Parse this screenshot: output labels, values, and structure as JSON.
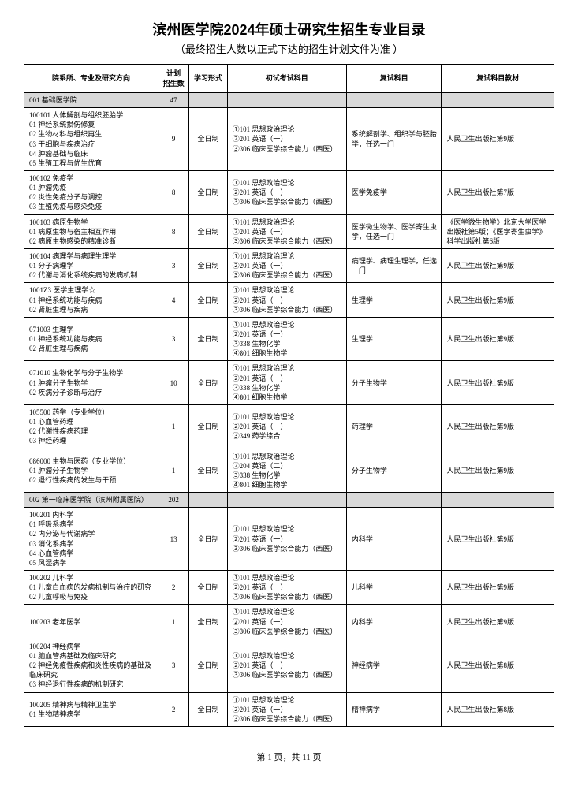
{
  "title": "滨州医学院2024年硕士研究生招生专业目录",
  "subtitle": "（最终招生人数以正式下达的招生计划文件为准 ）",
  "headers": {
    "dept": "院系所、专业及研究方向",
    "plan": "计划\n招生数",
    "mode": "学习形式",
    "exam1": "初试考试科目",
    "exam2": "复试科目",
    "material": "复试科目教材"
  },
  "footer": "第 1 页，共 11 页",
  "rows": [
    {
      "type": "section",
      "name": "001 基础医学院",
      "plan": "47"
    },
    {
      "type": "entry",
      "dir": "100101 人体解剖与组织胚胎学\n01 神经系统损伤修复\n02 生物材料与组织再生\n03 干细胞与疾病治疗\n04 肿瘤基础与临床\n05 生殖工程与优生优育",
      "plan": "9",
      "mode": "全日制",
      "exam1": "①101 思想政治理论\n②201 英语（一）\n③306 临床医学综合能力（西医）",
      "exam2": "系统解剖学、组织学与胚胎学，任选一门",
      "material": "人民卫生出版社第9版"
    },
    {
      "type": "entry",
      "dir": "100102 免疫学\n01 肿瘤免疫\n02 炎性免疫分子与调控\n03 生殖免疫与感染免疫",
      "plan": "8",
      "mode": "全日制",
      "exam1": "①101 思想政治理论\n②201 英语（一）\n③306 临床医学综合能力（西医）",
      "exam2": "医学免疫学",
      "material": "人民卫生出版社第7版"
    },
    {
      "type": "entry",
      "dir": "100103 病原生物学\n01 病原生物与宿主相互作用\n02 病原生物感染的精准诊断",
      "plan": "8",
      "mode": "全日制",
      "exam1": "①101 思想政治理论\n②201 英语（一）\n③306 临床医学综合能力（西医）",
      "exam2": "医学微生物学、医学寄生虫学，任选一门",
      "material": "《医学微生物学》北京大学医学出版社第5版；《医学寄生虫学》科学出版社第6版"
    },
    {
      "type": "entry",
      "dir": "100104 病理学与病理生理学\n01 分子病理学\n02 代谢与消化系统疾病的发病机制",
      "plan": "3",
      "mode": "全日制",
      "exam1": "①101 思想政治理论\n②201 英语（一）\n③306 临床医学综合能力（西医）",
      "exam2": "病理学、病理生理学，任选一门",
      "material": "人民卫生出版社第9版"
    },
    {
      "type": "entry",
      "dir": "1001Z3 医学生理学☆\n01 神经系统功能与疾病\n02 肾脏生理与疾病",
      "plan": "4",
      "mode": "全日制",
      "exam1": "①101 思想政治理论\n②201 英语（一）\n③306 临床医学综合能力（西医）",
      "exam2": "生理学",
      "material": "人民卫生出版社第9版"
    },
    {
      "type": "entry",
      "dir": "071003 生理学\n01 神经系统功能与疾病\n02 肾脏生理与疾病",
      "plan": "3",
      "mode": "全日制",
      "exam1": "①101 思想政治理论\n②201 英语（一）\n③338 生物化学\n④801 细胞生物学",
      "exam2": "生理学",
      "material": "人民卫生出版社第9版"
    },
    {
      "type": "entry",
      "dir": "071010 生物化学与分子生物学\n01 肿瘤分子生物学\n02 疾病分子诊断与治疗",
      "plan": "10",
      "mode": "全日制",
      "exam1": "①101 思想政治理论\n②201 英语（一）\n③338 生物化学\n④801 细胞生物学",
      "exam2": "分子生物学",
      "material": "人民卫生出版社第9版"
    },
    {
      "type": "entry",
      "dir": "105500 药学（专业学位）\n01 心血管药理\n02 代谢性疾病药理\n03 神经药理",
      "plan": "1",
      "mode": "全日制",
      "exam1": "①101 思想政治理论\n②201 英语（一）\n③349 药学综合",
      "exam2": "药理学",
      "material": "人民卫生出版社第9版"
    },
    {
      "type": "entry",
      "dir": "086000 生物与医药（专业学位）\n01 肿瘤分子生物学\n02 退行性疾病的发生与干预",
      "plan": "1",
      "mode": "全日制",
      "exam1": "①101 思想政治理论\n②204 英语（二）\n③338 生物化学\n④801 细胞生物学",
      "exam2": "分子生物学",
      "material": "人民卫生出版社第9版"
    },
    {
      "type": "section",
      "name": "002 第一临床医学院（滨州附属医院）",
      "plan": "202"
    },
    {
      "type": "entry",
      "dir": "100201 内科学\n01 呼吸系病学\n02 内分泌与代谢病学\n03 消化系病学\n04 心血管病学\n05 风湿病学",
      "plan": "13",
      "mode": "全日制",
      "exam1": "①101 思想政治理论\n②201 英语（一）\n③306 临床医学综合能力（西医）",
      "exam2": "内科学",
      "material": "人民卫生出版社第9版"
    },
    {
      "type": "entry",
      "dir": "100202 儿科学\n01 儿童白血病的发病机制与治疗的研究\n02 儿童呼吸与免疫",
      "plan": "2",
      "mode": "全日制",
      "exam1": "①101 思想政治理论\n②201 英语（一）\n③306 临床医学综合能力（西医）",
      "exam2": "儿科学",
      "material": "人民卫生出版社第9版"
    },
    {
      "type": "entry",
      "dir": "100203 老年医学",
      "plan": "1",
      "mode": "全日制",
      "exam1": "①101 思想政治理论\n②201 英语（一）\n③306 临床医学综合能力（西医）",
      "exam2": "内科学",
      "material": "人民卫生出版社第9版"
    },
    {
      "type": "entry",
      "dir": "100204 神经病学\n01 脑血管病基础及临床研究\n02 神经免疫性疾病和炎性疾病的基础及临床研究\n03 神经退行性疾病的机制研究",
      "plan": "3",
      "mode": "全日制",
      "exam1": "①101 思想政治理论\n②201 英语（一）\n③306 临床医学综合能力（西医）",
      "exam2": "神经病学",
      "material": "人民卫生出版社第8版"
    },
    {
      "type": "entry",
      "dir": "100205 精神病与精神卫生学\n01 生物精神病学",
      "plan": "2",
      "mode": "全日制",
      "exam1": "①101 思想政治理论\n②201 英语（一）\n③306 临床医学综合能力（西医）",
      "exam2": "精神病学",
      "material": "人民卫生出版社第8版"
    }
  ]
}
